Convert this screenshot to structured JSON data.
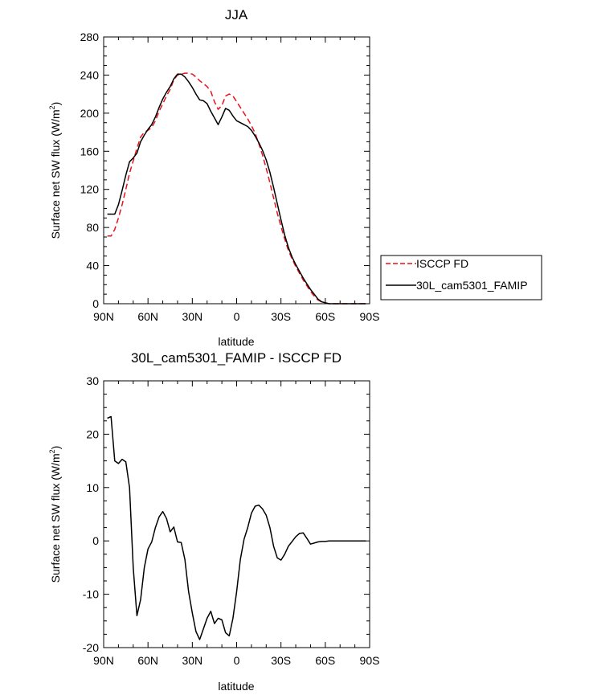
{
  "chart_data": [
    {
      "type": "line",
      "title": "JJA",
      "xlabel": "latitude",
      "ylabel": "Surface net SW flux (W/m",
      "ylabel_sup": "2",
      "ylabel_end": ")",
      "xlim": [
        90,
        -90
      ],
      "ylim": [
        0,
        280
      ],
      "xticks": [
        90,
        60,
        30,
        0,
        -30,
        -60,
        -90
      ],
      "xtick_labels": [
        "90N",
        "60N",
        "30N",
        "0",
        "30S",
        "60S",
        "90S"
      ],
      "yticks": [
        0,
        40,
        80,
        120,
        160,
        200,
        240,
        280
      ],
      "ytick_labels": [
        "0",
        "40",
        "80",
        "120",
        "160",
        "200",
        "240",
        "280"
      ],
      "legend": {
        "placement": "right"
      },
      "series": [
        {
          "name": "ISCCP FD",
          "color": "#e8111c",
          "dash": "dashed",
          "x": [
            87.5,
            85,
            82.5,
            80,
            77.5,
            75,
            72.5,
            70,
            67.5,
            65,
            62.5,
            60,
            57.5,
            55,
            52.5,
            50,
            47.5,
            45,
            42.5,
            40,
            37.5,
            35,
            32.5,
            30,
            27.5,
            25,
            22.5,
            20,
            17.5,
            15,
            12.5,
            10,
            7.5,
            5,
            2.5,
            0,
            -2.5,
            -5,
            -7.5,
            -10,
            -12.5,
            -15,
            -17.5,
            -20,
            -22.5,
            -25,
            -27.5,
            -30,
            -32.5,
            -35,
            -37.5,
            -40,
            -42.5,
            -45,
            -47.5,
            -50,
            -52.5,
            -55,
            -57.5,
            -60,
            -62.5,
            -65,
            -67.5,
            -70,
            -72.5,
            -75,
            -77.5,
            -80,
            -82.5,
            -85,
            -87.5
          ],
          "values": [
            71,
            71,
            78,
            90,
            104,
            120,
            137,
            150,
            163,
            175,
            180,
            182,
            185,
            192,
            202,
            210,
            218,
            225,
            235,
            240,
            241,
            242,
            242,
            241,
            238,
            234,
            231,
            228,
            223,
            212,
            204,
            208,
            218,
            220,
            218,
            212,
            206,
            200,
            194,
            187,
            179,
            168,
            156,
            142,
            127,
            111,
            95,
            81,
            68,
            56,
            47,
            39,
            32,
            25,
            19,
            13,
            8,
            4,
            2,
            1,
            0,
            0,
            0,
            0,
            0,
            0,
            0,
            0,
            0,
            0,
            0
          ]
        },
        {
          "name": "30L_cam5301_FAMIP",
          "color": "#000000",
          "dash": "solid",
          "x": [
            87.5,
            85,
            82.5,
            80,
            77.5,
            75,
            72.5,
            70,
            67.5,
            65,
            62.5,
            60,
            57.5,
            55,
            52.5,
            50,
            47.5,
            45,
            42.5,
            40,
            37.5,
            35,
            32.5,
            30,
            27.5,
            25,
            22.5,
            20,
            17.5,
            15,
            12.5,
            10,
            7.5,
            5,
            2.5,
            0,
            -2.5,
            -5,
            -7.5,
            -10,
            -12.5,
            -15,
            -17.5,
            -20,
            -22.5,
            -25,
            -27.5,
            -30,
            -32.5,
            -35,
            -37.5,
            -40,
            -42.5,
            -45,
            -47.5,
            -50,
            -52.5,
            -55,
            -57.5,
            -60,
            -62.5,
            -65,
            -67.5,
            -70,
            -72.5,
            -75,
            -77.5,
            -80,
            -82.5,
            -85,
            -87.5
          ],
          "values": [
            94,
            94,
            94,
            104,
            119,
            135,
            149,
            153,
            158,
            170,
            177,
            183,
            188,
            196,
            206,
            215,
            222,
            228,
            236,
            241,
            241,
            238,
            233,
            227,
            220,
            214,
            213,
            210,
            202,
            195,
            188,
            196,
            205,
            203,
            197,
            192,
            190,
            188,
            186,
            182,
            176,
            169,
            161,
            151,
            138,
            122,
            105,
            88,
            72,
            59,
            49,
            41,
            34,
            27,
            21,
            15,
            10,
            5,
            2,
            1,
            0,
            0,
            0,
            0,
            0,
            0,
            0,
            0,
            0,
            0,
            0
          ]
        }
      ]
    },
    {
      "type": "line",
      "title": "30L_cam5301_FAMIP - ISCCP FD",
      "xlabel": "latitude",
      "ylabel": "Surface net SW flux (W/m",
      "ylabel_sup": "2",
      "ylabel_end": ")",
      "xlim": [
        90,
        -90
      ],
      "ylim": [
        -20,
        30
      ],
      "xticks": [
        90,
        60,
        30,
        0,
        -30,
        -60,
        -90
      ],
      "xtick_labels": [
        "90N",
        "60N",
        "30N",
        "0",
        "30S",
        "60S",
        "90S"
      ],
      "yticks": [
        -20,
        -10,
        0,
        10,
        20,
        30
      ],
      "ytick_labels": [
        "-20",
        "-10",
        "0",
        "10",
        "20",
        "30"
      ],
      "series": [
        {
          "color": "#000000",
          "dash": "solid",
          "x": [
            87.5,
            85,
            82.5,
            80,
            77.5,
            75,
            72.5,
            70,
            67.5,
            65,
            62.5,
            60,
            57.5,
            55,
            52.5,
            50,
            47.5,
            45,
            42.5,
            40,
            37.5,
            35,
            32.5,
            30,
            27.5,
            25,
            22.5,
            20,
            17.5,
            15,
            12.5,
            10,
            7.5,
            5,
            2.5,
            0,
            -2.5,
            -5,
            -7.5,
            -10,
            -12.5,
            -15,
            -17.5,
            -20,
            -22.5,
            -25,
            -27.5,
            -30,
            -32.5,
            -35,
            -37.5,
            -40,
            -42.5,
            -45,
            -47.5,
            -50,
            -52.5,
            -55,
            -57.5,
            -60,
            -62.5,
            -65,
            -67.5,
            -70,
            -72.5,
            -75,
            -77.5,
            -80,
            -82.5,
            -85,
            -87.5
          ],
          "values": [
            23,
            23.3,
            15,
            14.5,
            15.3,
            14.8,
            10,
            -5,
            -14,
            -11,
            -5,
            -1.5,
            -0.2,
            2.5,
            4.5,
            5.5,
            4.2,
            1.7,
            2.6,
            -0.2,
            -0.3,
            -3.5,
            -9.5,
            -13.5,
            -17,
            -18.5,
            -16.5,
            -14.5,
            -13.2,
            -15.5,
            -14.5,
            -14.8,
            -17.2,
            -17.8,
            -14.5,
            -9.5,
            -3.5,
            0.3,
            2.5,
            5.2,
            6.5,
            6.7,
            6,
            4.8,
            2.5,
            -1,
            -3.2,
            -3.6,
            -2.5,
            -1,
            -0.1,
            0.8,
            1.4,
            1.5,
            0.5,
            -0.6,
            -0.4,
            -0.2,
            -0.1,
            -0.1,
            0,
            0,
            0,
            0,
            0,
            0,
            0,
            0,
            0,
            0,
            0
          ]
        }
      ]
    }
  ]
}
